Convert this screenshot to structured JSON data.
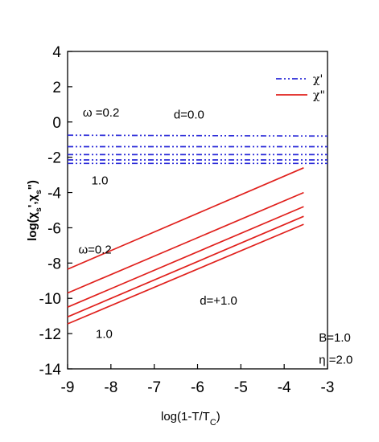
{
  "chart_data": {
    "type": "line",
    "xlabel": "log(1-T/T",
    "xlabel_sub": "C",
    "xlabel_close": ")",
    "ylabel": "log(χ",
    "ylabel_parts": [
      "s",
      "'",
      ",χ",
      "s",
      "\")"
    ],
    "xlim": [
      -9,
      -3
    ],
    "ylim": [
      -14,
      4
    ],
    "x_ticks": [
      -9,
      -8,
      -7,
      -6,
      -5,
      -4,
      -3
    ],
    "y_ticks": [
      -14,
      -12,
      -10,
      -8,
      -6,
      -4,
      -2,
      0,
      2,
      4
    ],
    "legend_position": "top-right",
    "legend": [
      {
        "label": "χ'",
        "style": "dash-dot-dot",
        "color": "#2a2ad8"
      },
      {
        "label": "χ\"",
        "style": "solid",
        "color": "#e0201c"
      }
    ],
    "series": [
      {
        "group": "chi_prime",
        "x": [
          -9,
          -3
        ],
        "y": [
          -0.75,
          -0.8
        ],
        "color": "#2a2ad8"
      },
      {
        "group": "chi_prime",
        "x": [
          -9,
          -3
        ],
        "y": [
          -1.4,
          -1.4
        ],
        "color": "#2a2ad8"
      },
      {
        "group": "chi_prime",
        "x": [
          -9,
          -3
        ],
        "y": [
          -1.85,
          -1.85
        ],
        "color": "#2a2ad8"
      },
      {
        "group": "chi_prime",
        "x": [
          -9,
          -3
        ],
        "y": [
          -2.15,
          -2.15
        ],
        "color": "#2a2ad8"
      },
      {
        "group": "chi_prime",
        "x": [
          -9,
          -3
        ],
        "y": [
          -2.35,
          -2.35
        ],
        "color": "#2a2ad8"
      },
      {
        "group": "chi_dprime",
        "x": [
          -9,
          -3.55
        ],
        "y": [
          -8.35,
          -2.6
        ],
        "color": "#e0201c"
      },
      {
        "group": "chi_dprime",
        "x": [
          -9,
          -3.55
        ],
        "y": [
          -9.7,
          -4.0
        ],
        "color": "#e0201c"
      },
      {
        "group": "chi_dprime",
        "x": [
          -9,
          -3.55
        ],
        "y": [
          -10.5,
          -4.8
        ],
        "color": "#e0201c"
      },
      {
        "group": "chi_dprime",
        "x": [
          -9,
          -3.55
        ],
        "y": [
          -11.05,
          -5.35
        ],
        "color": "#e0201c"
      },
      {
        "group": "chi_dprime",
        "x": [
          -9,
          -3.55
        ],
        "y": [
          -11.45,
          -5.8
        ],
        "color": "#e0201c"
      }
    ],
    "annotations": [
      {
        "text": "ω =0.2",
        "x": -8.65,
        "y": 0.3
      },
      {
        "text": "d=0.0",
        "x": -6.55,
        "y": 0.2
      },
      {
        "text": "1.0",
        "x": -8.45,
        "y": -3.55
      },
      {
        "text": "ω=0.2",
        "x": -8.75,
        "y": -7.45
      },
      {
        "text": "d=+1.0",
        "x": -5.95,
        "y": -10.35
      },
      {
        "text": "1.0",
        "x": -8.35,
        "y": -12.25
      },
      {
        "text": "B=1.0",
        "x": -3.2,
        "y": -12.45
      },
      {
        "text": "η =2.0",
        "x": -3.2,
        "y": -13.7
      }
    ],
    "grid": false
  },
  "colors": {
    "chi_prime": "#2a2ad8",
    "chi_dprime": "#e0201c",
    "axis": "#000000"
  }
}
